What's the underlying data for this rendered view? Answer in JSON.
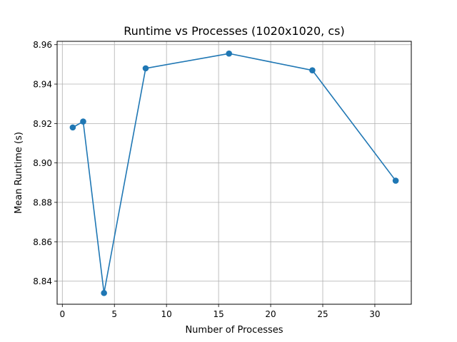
{
  "chart_data": {
    "type": "line",
    "title": "Runtime vs Processes (1020x1020, cs)",
    "xlabel": "Number of Processes",
    "ylabel": "Mean Runtime (s)",
    "xlim": [
      -0.5,
      33.5
    ],
    "ylim": [
      8.8283,
      8.9617
    ],
    "xticks": [
      0,
      5,
      10,
      15,
      20,
      25,
      30
    ],
    "xtick_labels": [
      "0",
      "5",
      "10",
      "15",
      "20",
      "25",
      "30"
    ],
    "yticks": [
      8.84,
      8.86,
      8.88,
      8.9,
      8.92,
      8.94,
      8.96
    ],
    "ytick_labels": [
      "8.84",
      "8.86",
      "8.88",
      "8.90",
      "8.92",
      "8.94",
      "8.96"
    ],
    "grid": true,
    "series": [
      {
        "color": "#1f77b4",
        "marker": "circle",
        "x": [
          1,
          2,
          4,
          8,
          16,
          24,
          32
        ],
        "y": [
          8.918,
          8.921,
          8.834,
          8.948,
          8.9555,
          8.947,
          8.891
        ]
      }
    ]
  }
}
